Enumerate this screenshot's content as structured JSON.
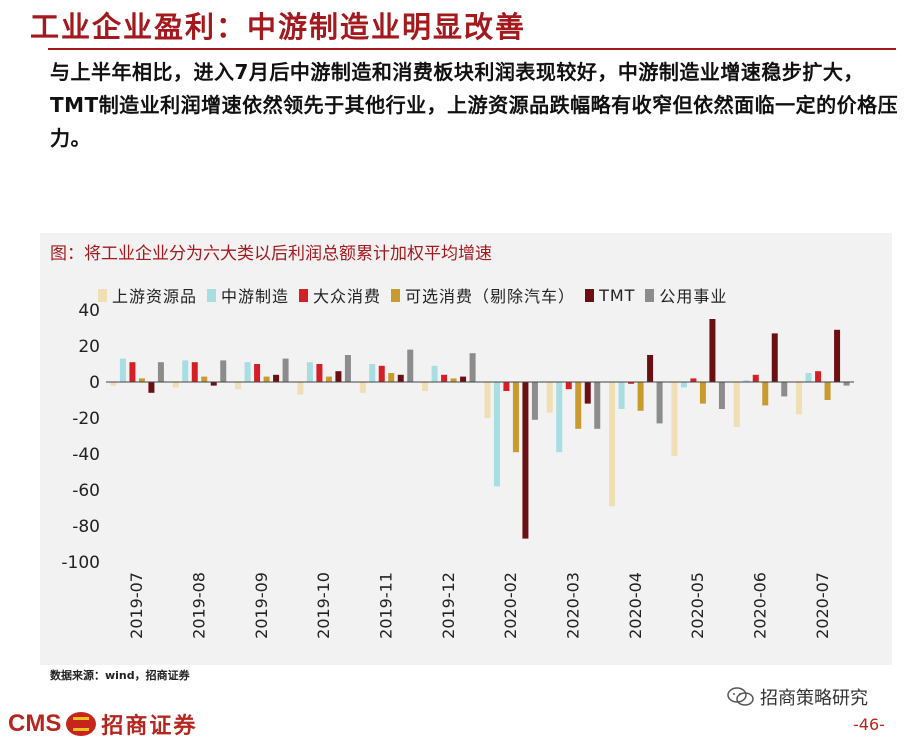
{
  "title": "工业企业盈利：中游制造业明显改善",
  "intro": "与上半年相比，进入7月后中游制造和消费板块利润表现较好，中游制造业增速稳步扩大，TMT制造业利润增速依然领先于其他行业，上游资源品跌幅略有收窄但依然面临一定的价格压力。",
  "figure_title": "图：将工业企业分为六大类以后利润总额累计加权平均增速",
  "source": "数据来源：wind，招商证券",
  "footer": {
    "logo_text": "CMS",
    "logo_cn": "招商证券",
    "wechat_text": "招商策略研究",
    "page_number": "-46-"
  },
  "chart_data": {
    "type": "bar",
    "categories": [
      "2019-07",
      "2019-08",
      "2019-09",
      "2019-10",
      "2019-11",
      "2019-12",
      "2020-02",
      "2020-03",
      "2020-04",
      "2020-05",
      "2020-06",
      "2020-07"
    ],
    "ylim": [
      -100,
      40
    ],
    "yticks": [
      40,
      20,
      0,
      -20,
      -40,
      -60,
      -80,
      -100
    ],
    "legend_position": "top",
    "grid": false,
    "series": [
      {
        "name": "上游资源品",
        "color": "#f0deb4",
        "values": [
          -2,
          -3,
          -4,
          -7,
          -6,
          -5,
          -20,
          -17,
          -69,
          -41,
          -25,
          -18
        ]
      },
      {
        "name": "中游制造",
        "color": "#a8dde2",
        "values": [
          13,
          12,
          11,
          11,
          10,
          9,
          -58,
          -39,
          -15,
          -3,
          1,
          5
        ]
      },
      {
        "name": "大众消费",
        "color": "#d41f26",
        "values": [
          11,
          11,
          10,
          10,
          9,
          4,
          -5,
          -4,
          -1,
          2,
          4,
          6
        ]
      },
      {
        "name": "可选消费（剔除汽车）",
        "color": "#c99a2e",
        "values": [
          2,
          3,
          3,
          3,
          5,
          2,
          -39,
          -26,
          -16,
          -12,
          -13,
          -10
        ]
      },
      {
        "name": "TMT",
        "color": "#6b0f12",
        "values": [
          -6,
          -2,
          4,
          6,
          4,
          3,
          -87,
          -12,
          15,
          35,
          27,
          29
        ]
      },
      {
        "name": "公用事业",
        "color": "#8c8c8c",
        "values": [
          11,
          12,
          13,
          15,
          18,
          16,
          -21,
          -26,
          -23,
          -15,
          -8,
          -2
        ]
      }
    ]
  }
}
